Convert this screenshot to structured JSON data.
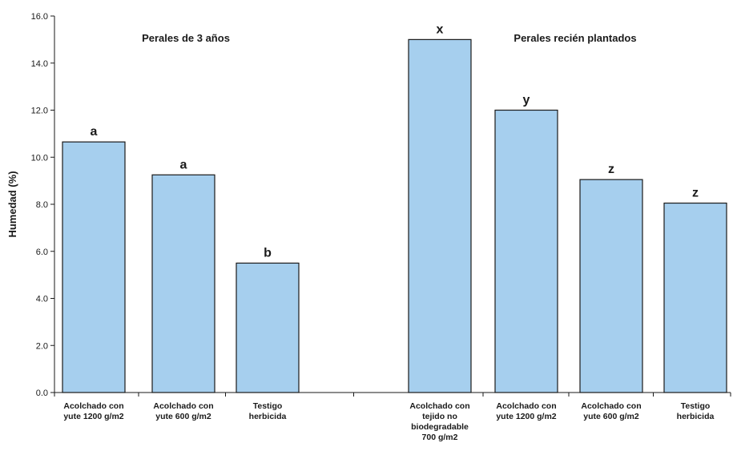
{
  "chart_data": {
    "type": "bar",
    "ylabel": "Humedad (%)",
    "ylim": [
      0,
      16
    ],
    "ytick_labels": [
      "0.0",
      "2.0",
      "4.0",
      "6.0",
      "8.0",
      "10.0",
      "12.0",
      "14.0",
      "16.0"
    ],
    "grid": false,
    "bar_color": "#a6cfee",
    "bar_edge_color": "#1a1a1a",
    "groups": [
      {
        "title": "Perales de 3 años",
        "categories": [
          [
            "Acolchado con",
            "yute 1200 g/m2"
          ],
          [
            "Acolchado con",
            "yute 600 g/m2"
          ],
          [
            "Testigo",
            "herbicida"
          ]
        ],
        "values": [
          10.65,
          9.25,
          5.5
        ],
        "letters": [
          "a",
          "a",
          "b"
        ]
      },
      {
        "title": "Perales recién plantados",
        "categories": [
          [
            "Acolchado con",
            "tejido no",
            "biodegradable",
            "700 g/m2"
          ],
          [
            "Acolchado con",
            "yute 1200 g/m2"
          ],
          [
            "Acolchado con",
            "yute 600 g/m2"
          ],
          [
            "Testigo",
            "herbicida"
          ]
        ],
        "values": [
          15.0,
          12.0,
          9.05,
          8.05
        ],
        "letters": [
          "x",
          "y",
          "z",
          "z"
        ]
      }
    ]
  }
}
